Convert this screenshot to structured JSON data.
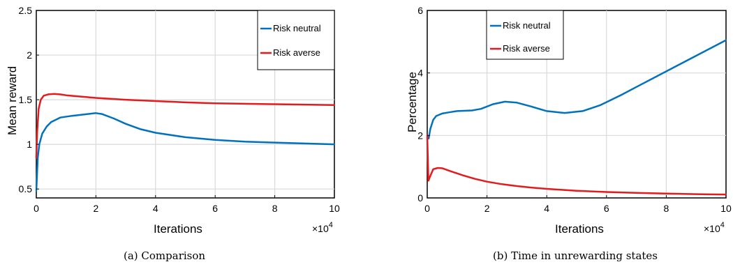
{
  "chart_data": [
    {
      "type": "line",
      "caption": "(a) Comparison",
      "xlabel": "Iterations",
      "ylabel": "Mean reward",
      "x_multiplier": "×10",
      "x_exponent": "4",
      "xlim": [
        0,
        10
      ],
      "ylim": [
        0.4,
        2.5
      ],
      "xticks": [
        0,
        2,
        4,
        6,
        8,
        10
      ],
      "xtick_labels": [
        "0",
        "2",
        "4",
        "6",
        "8",
        "10"
      ],
      "yticks": [
        0.5,
        1,
        1.5,
        2,
        2.5
      ],
      "ytick_labels": [
        "0.5",
        "1",
        "1.5",
        "2",
        "2.5"
      ],
      "grid": true,
      "legend_position": "top-right",
      "series": [
        {
          "name": "Risk neutral",
          "color": "#0072bd",
          "x": [
            0,
            0.05,
            0.1,
            0.2,
            0.35,
            0.5,
            0.8,
            1.2,
            1.6,
            2.0,
            2.2,
            2.6,
            3.0,
            3.5,
            4.0,
            5.0,
            6.0,
            7.0,
            8.0,
            9.0,
            10.0
          ],
          "y": [
            0.48,
            0.85,
            1.0,
            1.12,
            1.2,
            1.25,
            1.3,
            1.32,
            1.335,
            1.35,
            1.34,
            1.29,
            1.23,
            1.17,
            1.13,
            1.08,
            1.05,
            1.03,
            1.02,
            1.01,
            1.0
          ]
        },
        {
          "name": "Risk averse",
          "color": "#e41a1c",
          "x": [
            0,
            0.03,
            0.08,
            0.15,
            0.25,
            0.4,
            0.6,
            0.8,
            1.0,
            1.5,
            2.0,
            3.0,
            4.0,
            5.0,
            6.0,
            7.0,
            8.0,
            9.0,
            10.0
          ],
          "y": [
            0.85,
            1.15,
            1.4,
            1.5,
            1.545,
            1.56,
            1.565,
            1.56,
            1.55,
            1.535,
            1.52,
            1.5,
            1.485,
            1.47,
            1.46,
            1.455,
            1.45,
            1.445,
            1.44
          ]
        }
      ]
    },
    {
      "type": "line",
      "caption": "(b) Time in unrewarding states",
      "xlabel": "Iterations",
      "ylabel": "Percentage",
      "x_multiplier": "×10",
      "x_exponent": "4",
      "xlim": [
        0,
        10
      ],
      "ylim": [
        0,
        6
      ],
      "xticks": [
        0,
        2,
        4,
        6,
        8,
        10
      ],
      "xtick_labels": [
        "0",
        "2",
        "4",
        "6",
        "8",
        "10"
      ],
      "yticks": [
        0,
        2,
        4,
        6
      ],
      "ytick_labels": [
        "0",
        "2",
        "4",
        "6"
      ],
      "grid": true,
      "legend_position": "top-left",
      "series": [
        {
          "name": "Risk neutral",
          "color": "#0072bd",
          "x": [
            0,
            0.05,
            0.1,
            0.2,
            0.3,
            0.5,
            0.8,
            1.0,
            1.5,
            1.8,
            2.2,
            2.6,
            3.0,
            3.5,
            4.0,
            4.6,
            5.2,
            5.8,
            6.5,
            7.0,
            8.0,
            9.0,
            10.0
          ],
          "y": [
            2.0,
            1.9,
            2.2,
            2.5,
            2.62,
            2.7,
            2.75,
            2.78,
            2.8,
            2.85,
            3.0,
            3.08,
            3.05,
            2.92,
            2.78,
            2.72,
            2.78,
            2.97,
            3.3,
            3.55,
            4.05,
            4.55,
            5.05
          ]
        },
        {
          "name": "Risk averse",
          "color": "#e41a1c",
          "x": [
            0,
            0.04,
            0.1,
            0.2,
            0.35,
            0.5,
            0.8,
            1.2,
            1.6,
            2.0,
            2.5,
            3.0,
            3.5,
            4.0,
            5.0,
            6.0,
            7.0,
            8.0,
            9.0,
            10.0
          ],
          "y": [
            2.0,
            0.55,
            0.7,
            0.92,
            0.96,
            0.95,
            0.85,
            0.72,
            0.61,
            0.52,
            0.44,
            0.38,
            0.33,
            0.29,
            0.23,
            0.19,
            0.16,
            0.14,
            0.12,
            0.11
          ]
        }
      ]
    }
  ]
}
